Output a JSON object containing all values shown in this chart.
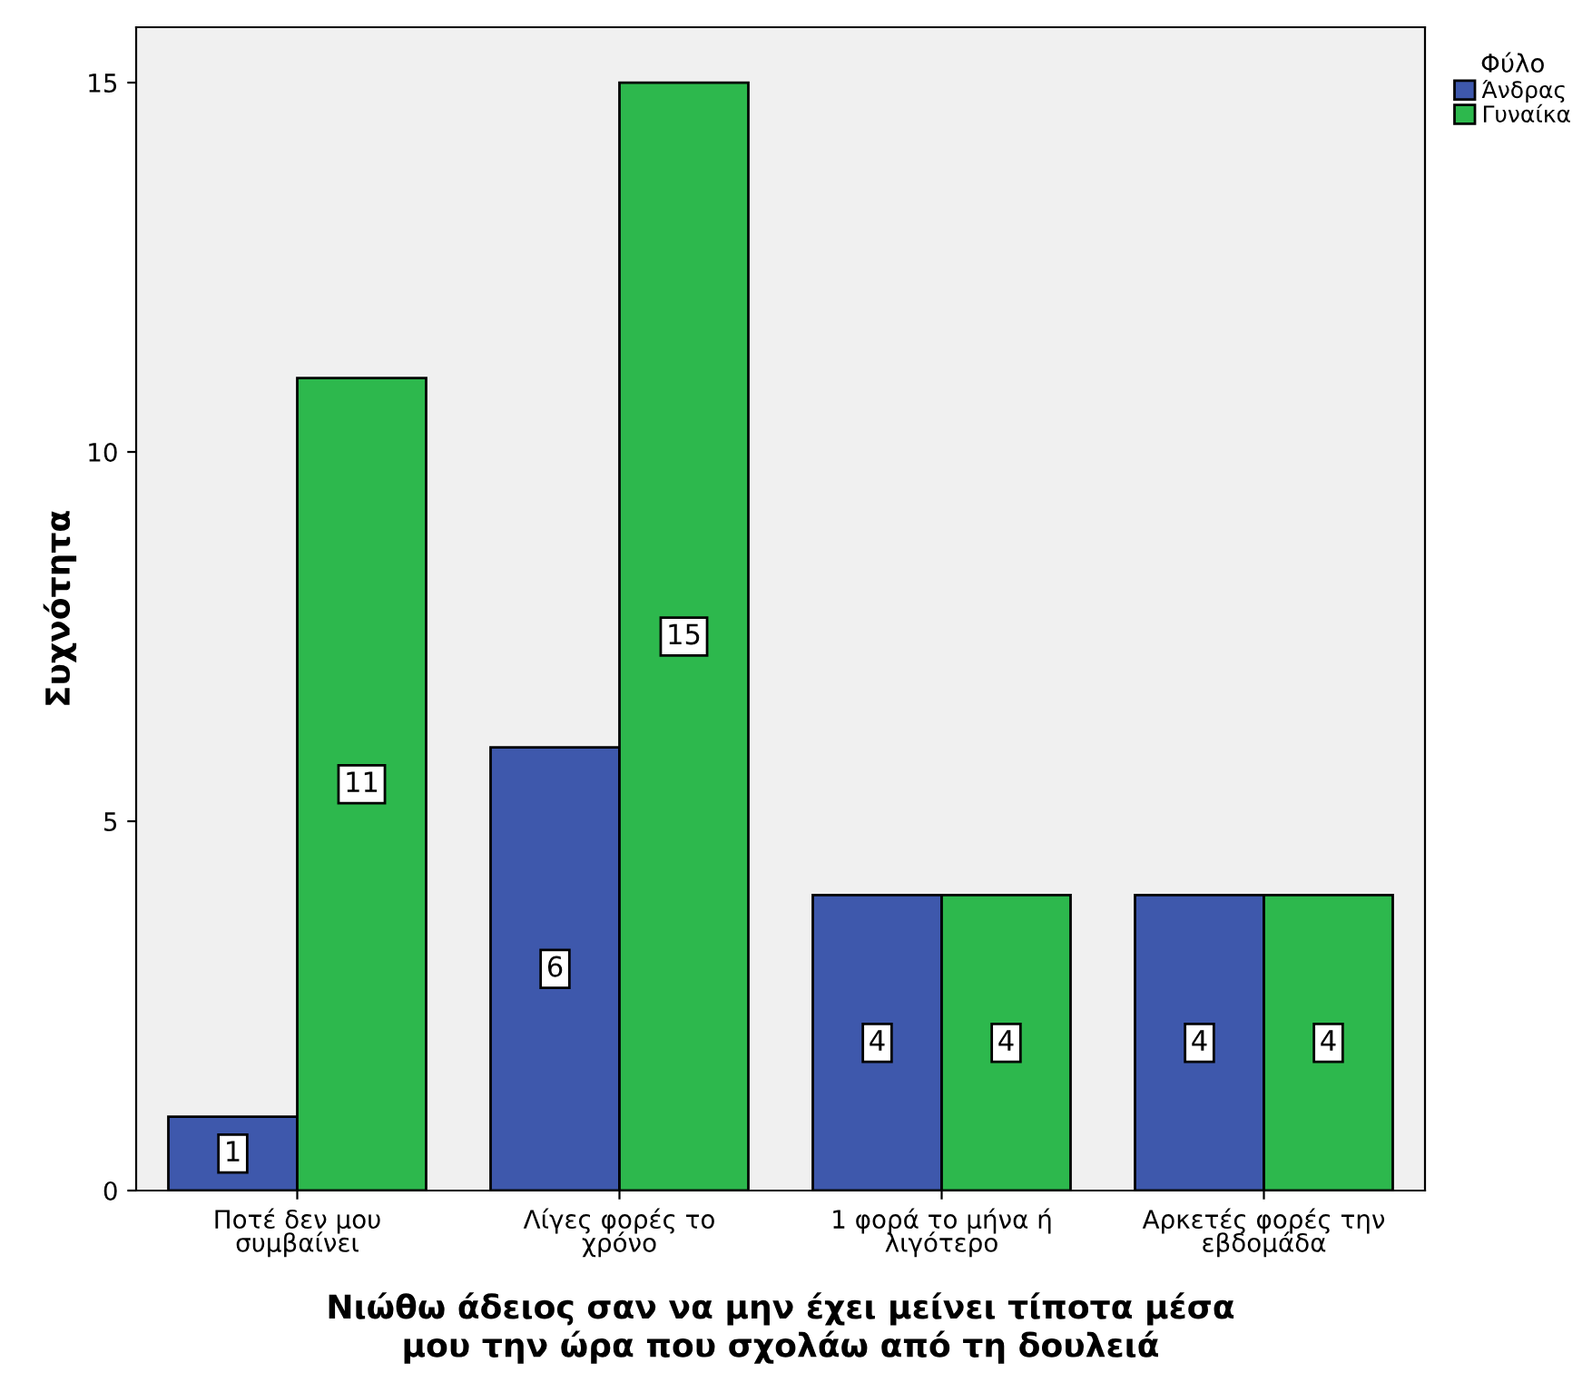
{
  "chart_data": {
    "type": "bar",
    "xlabel": "Νιώθω άδειος σαν να μην έχει μείνει τίποτα μέσα\nμου την ώρα που σχολάω από τη δουλειά",
    "ylabel": "Συχνότητα",
    "legend_title": "Φύλο",
    "categories": [
      "Ποτέ δεν μου\nσυμβαίνει",
      "Λίγες φορές το\nχρόνο",
      "1 φορά το μήνα ή\nλιγότερο",
      "Αρκετές φορές την\nεβδομάδα"
    ],
    "series": [
      {
        "name": "Άνδρας",
        "color": "#3e58ac",
        "values": [
          1,
          6,
          4,
          4
        ]
      },
      {
        "name": "Γυναίκα",
        "color": "#2db84d",
        "values": [
          11,
          15,
          4,
          4
        ]
      }
    ],
    "ylim": [
      0,
      15.75
    ],
    "yticks": [
      0,
      5,
      10,
      15
    ],
    "grid": false,
    "legend": "top right",
    "data_labels": true
  }
}
